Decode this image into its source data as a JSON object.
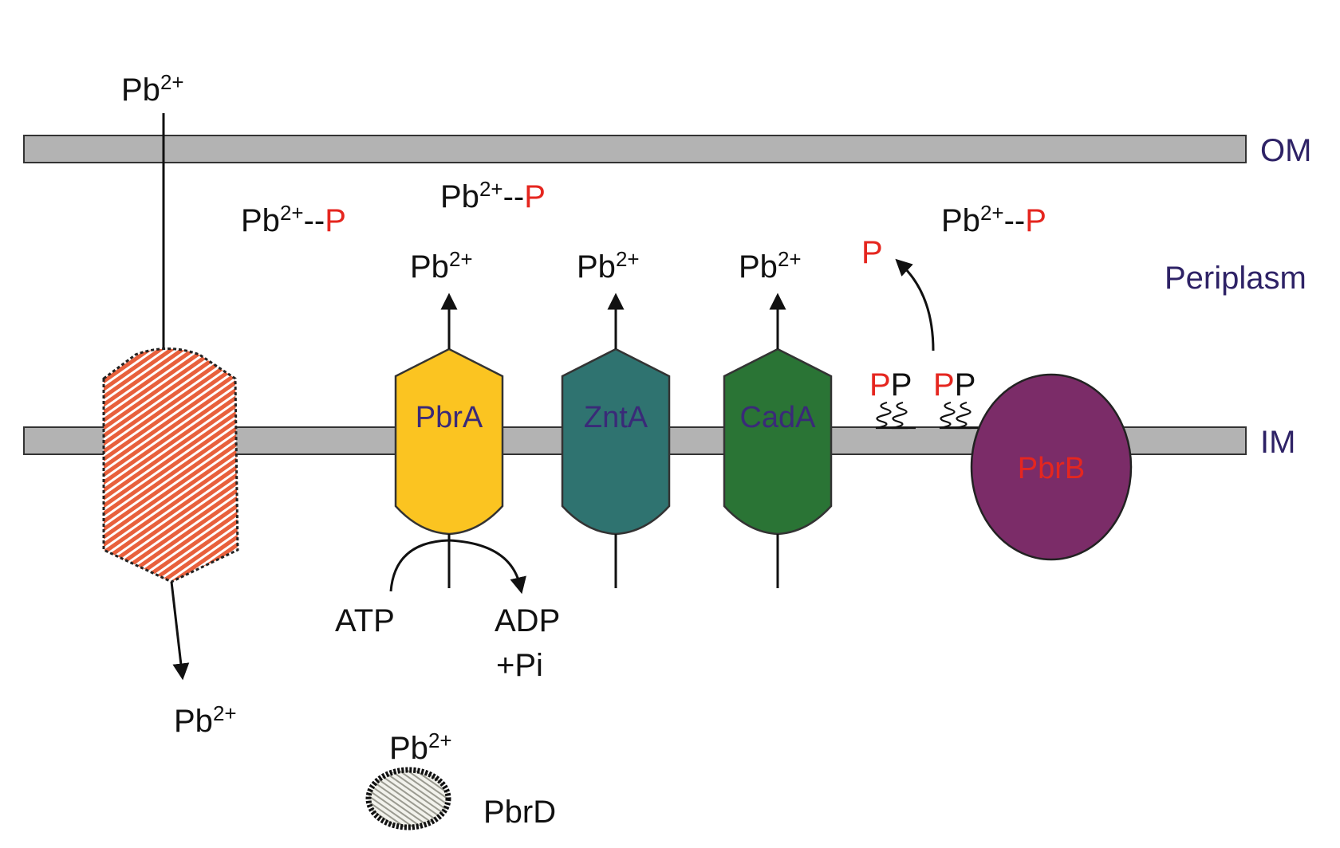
{
  "colors": {
    "membrane": "#b3b3b3",
    "pbrA": "#fbc421",
    "zntA": "#2f7370",
    "cadA": "#2a7435",
    "pbrB": "#7b2c68",
    "red": "#e5261f",
    "purple": "#3a2a78",
    "hatch": "#e8603c"
  },
  "membranes": {
    "om": "OM",
    "periplasm": "Periplasm",
    "im": "IM"
  },
  "ion": {
    "base": "Pb",
    "charge": "2+",
    "bond": "--",
    "phosphate": "P"
  },
  "proteins": {
    "pbrA": "PbrA",
    "zntA": "ZntA",
    "cadA": "CadA",
    "pbrB": "PbrB",
    "pbrD": "PbrD"
  },
  "reaction": {
    "atp": "ATP",
    "adp": "ADP",
    "pi": "+Pi"
  }
}
